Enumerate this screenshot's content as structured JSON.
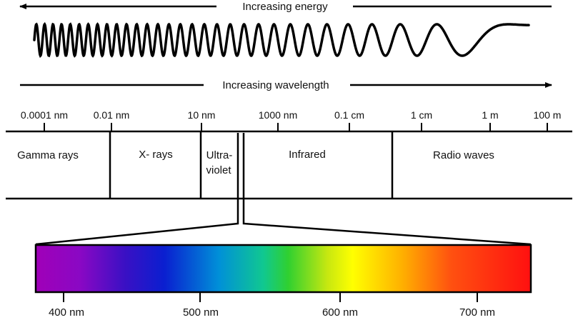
{
  "top_arrows": {
    "energy_label": "Increasing energy",
    "wavelength_label": "Increasing wavelength"
  },
  "scale": {
    "ticks": [
      "0.0001 nm",
      "0.01 nm",
      "10 nm",
      "1000 nm",
      "0.1 cm",
      "1 cm",
      "1 m",
      "100 m"
    ]
  },
  "bands": {
    "gamma": "Gamma rays",
    "xray": "X- rays",
    "uv_line1": "Ultra-",
    "uv_line2": "violet",
    "infrared": "Infrared",
    "radio": "Radio waves"
  },
  "visible": {
    "ticks": [
      "400 nm",
      "500 nm",
      "600 nm",
      "700 nm"
    ],
    "gradient_colors": [
      "#a000b8",
      "#7a10c8",
      "#2a10c0",
      "#0a1fd0",
      "#0090d8",
      "#10c890",
      "#30d030",
      "#c8e810",
      "#ffff00",
      "#ffa000",
      "#ff5010",
      "#ff1010"
    ]
  },
  "colors": {
    "line": "#000000",
    "background": "#ffffff"
  }
}
